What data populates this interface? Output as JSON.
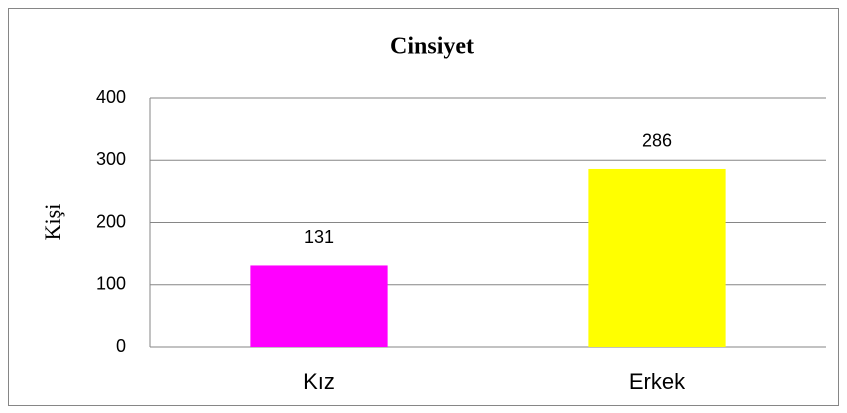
{
  "chart_data": {
    "type": "bar",
    "title": "Cinsiyet",
    "y_label": "Kişi",
    "categories": [
      "Kız",
      "Erkek"
    ],
    "values": [
      131,
      286
    ],
    "colors": [
      "#ff00ff",
      "#ffff00"
    ],
    "ylim": [
      0,
      400
    ],
    "yticks": [
      0,
      100,
      200,
      300,
      400
    ],
    "grid": true
  }
}
